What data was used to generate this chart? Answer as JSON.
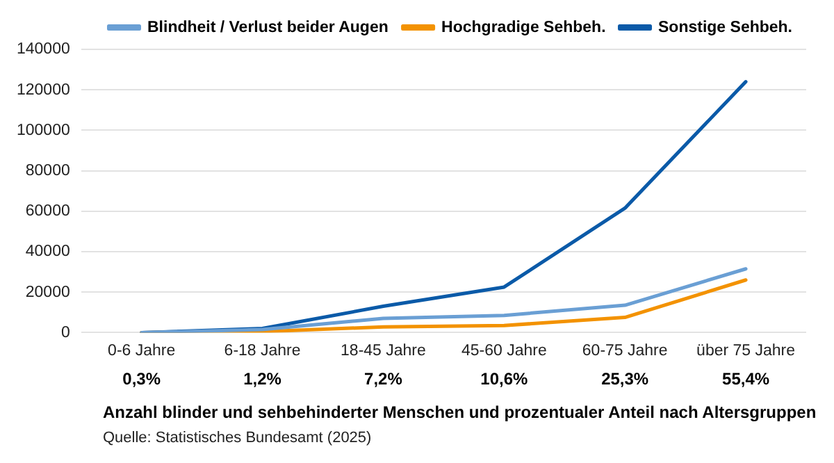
{
  "chart_data": {
    "type": "line",
    "title": "Anzahl blinder und sehbehinderter Menschen und prozentualer Anteil nach Altersgruppen",
    "categories": [
      "0-6 Jahre",
      "6-18 Jahre",
      "18-45 Jahre",
      "45-60 Jahre",
      "60-75 Jahre",
      "über 75 Jahre"
    ],
    "series": [
      {
        "name": "Blindheit / Verlust beider Augen",
        "color": "#6a9fd4",
        "values": [
          0,
          1500,
          7000,
          8500,
          13500,
          31500
        ]
      },
      {
        "name": "Hochgradige Sehbeh.",
        "color": "#f39200",
        "values": [
          0,
          500,
          2800,
          3500,
          7500,
          26000
        ]
      },
      {
        "name": "Sonstige Sehbeh.",
        "color": "#0a5aa8",
        "values": [
          0,
          2000,
          13000,
          22500,
          61500,
          124000
        ]
      }
    ],
    "ylim": [
      0,
      140000
    ],
    "yticks": [
      0,
      20000,
      40000,
      60000,
      80000,
      100000,
      120000,
      140000
    ],
    "grid": "y",
    "legend": "top right",
    "marker": "none",
    "line_style": "solid",
    "annotations": [
      "0,3%",
      "1,2%",
      "7,2%",
      "10,6%",
      "25,3%",
      "55,4%",
      "Quelle: Statistisches Bundesamt (2025)"
    ]
  }
}
